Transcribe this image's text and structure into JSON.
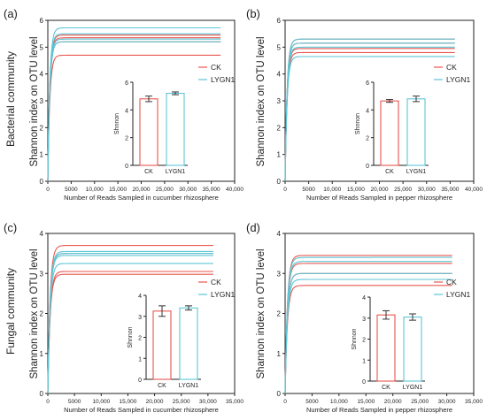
{
  "figure": {
    "row_labels": [
      "Bacterial community",
      "Fungal community"
    ]
  },
  "chart_data": [
    {
      "panel_label": "(a)",
      "type": "line",
      "xlabel": "Number of Reads Sampled in cucumber rhizosphere",
      "ylabel": "Shannon index on OTU level",
      "xlim": [
        0,
        40000
      ],
      "ylim": [
        0,
        6
      ],
      "xticks": [
        "0",
        "5000",
        "10,000",
        "15,000",
        "20,000",
        "25,000",
        "30,000",
        "35,000",
        "40,000"
      ],
      "yticks": [
        "0",
        "1",
        "2",
        "3",
        "4",
        "5",
        "6"
      ],
      "x_end": 37000,
      "series": [
        {
          "name": "CK",
          "color": "#e8574f",
          "plateaus": [
            4.7,
            5.2,
            5.35,
            5.45
          ]
        },
        {
          "name": "LYGN1",
          "color": "#5cc6d6",
          "plateaus": [
            5.2,
            5.3,
            5.5,
            5.72
          ]
        }
      ],
      "inset": {
        "type": "bar",
        "categories": [
          "CK",
          "LYGN1"
        ],
        "values": [
          4.8,
          5.2
        ],
        "errors": [
          0.2,
          0.1
        ],
        "ylabel": "Shnnon",
        "ylim": [
          0,
          6
        ],
        "yticks": [
          "0",
          "2",
          "4",
          "6"
        ]
      },
      "legend": [
        "CK",
        "LYGN1"
      ]
    },
    {
      "panel_label": "(b)",
      "type": "line",
      "xlabel": "Number of Reads Sampled in pepper rhizosphere",
      "ylabel": "Shannon index on OTU level",
      "xlim": [
        0,
        40000
      ],
      "ylim": [
        0,
        6
      ],
      "xticks": [
        "0",
        "5000",
        "10,000",
        "15,000",
        "20,000",
        "25,000",
        "30,000",
        "35,000",
        "40,000"
      ],
      "yticks": [
        "0",
        "1",
        "2",
        "3",
        "4",
        "5",
        "6"
      ],
      "x_end": 36000,
      "series": [
        {
          "name": "CK",
          "color": "#e8574f",
          "plateaus": [
            4.8,
            4.95,
            5.15,
            5.3
          ]
        },
        {
          "name": "LYGN1",
          "color": "#5cc6d6",
          "plateaus": [
            4.65,
            5.0,
            5.15,
            5.3
          ]
        }
      ],
      "inset": {
        "type": "bar",
        "categories": [
          "CK",
          "LYGN1"
        ],
        "values": [
          4.65,
          4.8
        ],
        "errors": [
          0.1,
          0.2
        ],
        "ylabel": "Shnnon",
        "ylim": [
          0,
          6
        ],
        "yticks": [
          "0",
          "2",
          "4",
          "6"
        ]
      },
      "legend": [
        "CK",
        "LYGN1"
      ]
    },
    {
      "panel_label": "(c)",
      "type": "line",
      "xlabel": "Number of Reads Sampled in cucumber rhizosphere",
      "ylabel": "Shannon index on OTU level",
      "xlim": [
        0,
        35000
      ],
      "ylim": [
        0,
        4
      ],
      "xticks": [
        "0",
        "5000",
        "10,000",
        "15,000",
        "20,000",
        "25,000",
        "30,000",
        "35,000"
      ],
      "yticks": [
        "0",
        "1",
        "2",
        "3",
        "4"
      ],
      "x_end": 31000,
      "series": [
        {
          "name": "CK",
          "color": "#e8574f",
          "plateaus": [
            2.98,
            3.05,
            3.5,
            3.7
          ]
        },
        {
          "name": "LYGN1",
          "color": "#5cc6d6",
          "plateaus": [
            3.25,
            3.45,
            3.5,
            3.55
          ]
        }
      ],
      "inset": {
        "type": "bar",
        "categories": [
          "CK",
          "LYGN1"
        ],
        "values": [
          3.25,
          3.4
        ],
        "errors": [
          0.25,
          0.1
        ],
        "ylabel": "Shnnon",
        "ylim": [
          0,
          4
        ],
        "yticks": [
          "0",
          "1",
          "2",
          "3",
          "4"
        ]
      },
      "legend": [
        "CK",
        "LYGN1"
      ]
    },
    {
      "panel_label": "(d)",
      "type": "line",
      "xlabel": "Number of Reads Sampled in pepper rhizosphere",
      "ylabel": "Shannon index on OTU level",
      "xlim": [
        0,
        35000
      ],
      "ylim": [
        0,
        4
      ],
      "xticks": [
        "0",
        "5000",
        "10,000",
        "15,000",
        "20,000",
        "25,000",
        "30,000",
        "35,000"
      ],
      "yticks": [
        "0",
        "1",
        "2",
        "3",
        "4"
      ],
      "x_end": 31000,
      "series": [
        {
          "name": "CK",
          "color": "#e8574f",
          "plateaus": [
            2.7,
            3.0,
            3.25,
            3.45
          ]
        },
        {
          "name": "LYGN1",
          "color": "#5cc6d6",
          "plateaus": [
            2.85,
            3.0,
            3.3,
            3.4
          ]
        }
      ],
      "inset": {
        "type": "bar",
        "categories": [
          "CK",
          "LYGN1"
        ],
        "values": [
          3.15,
          3.05
        ],
        "errors": [
          0.2,
          0.15
        ],
        "ylabel": "Shnnon",
        "ylim": [
          0,
          4
        ],
        "yticks": [
          "0",
          "1",
          "2",
          "3",
          "4"
        ]
      },
      "legend": [
        "CK",
        "LYGN1"
      ]
    }
  ]
}
